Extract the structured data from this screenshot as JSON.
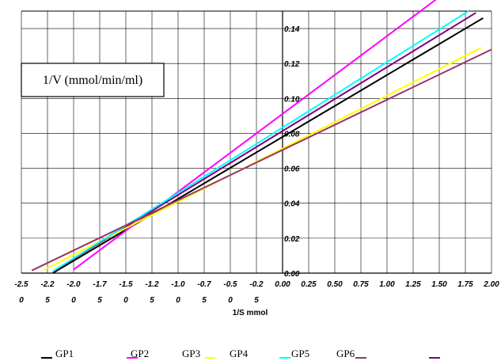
{
  "chart_data": {
    "type": "line",
    "title": "",
    "xlabel": "1/S mmol",
    "ylabel": "1/V (mmol/min/ml)",
    "xlim": [
      -2.5,
      2.0
    ],
    "ylim": [
      0.0,
      0.15
    ],
    "grid": true,
    "legend_position": "bottom",
    "x_ticks": [
      {
        "value": -2.5,
        "line1": "-2.5",
        "line2": "0"
      },
      {
        "value": -2.25,
        "line1": "-2.2",
        "line2": "5"
      },
      {
        "value": -2.0,
        "line1": "-2.0",
        "line2": "0"
      },
      {
        "value": -1.75,
        "line1": "-1.7",
        "line2": "5"
      },
      {
        "value": -1.5,
        "line1": "-1.5",
        "line2": "0"
      },
      {
        "value": -1.25,
        "line1": "-1.2",
        "line2": "5"
      },
      {
        "value": -1.0,
        "line1": "-1.0",
        "line2": "0"
      },
      {
        "value": -0.75,
        "line1": "-0.7",
        "line2": "5"
      },
      {
        "value": -0.5,
        "line1": "-0.5",
        "line2": "0"
      },
      {
        "value": -0.25,
        "line1": "-0.2",
        "line2": "5"
      },
      {
        "value": 0.0,
        "line1": "0.00",
        "line2": ""
      },
      {
        "value": 0.25,
        "line1": "0.25",
        "line2": ""
      },
      {
        "value": 0.5,
        "line1": "0.50",
        "line2": ""
      },
      {
        "value": 0.75,
        "line1": "0.75",
        "line2": ""
      },
      {
        "value": 1.0,
        "line1": "1.00",
        "line2": ""
      },
      {
        "value": 1.25,
        "line1": "1.25",
        "line2": ""
      },
      {
        "value": 1.5,
        "line1": "1.50",
        "line2": ""
      },
      {
        "value": 1.75,
        "line1": "1.75",
        "line2": ""
      },
      {
        "value": 2.0,
        "line1": "2.00",
        "line2": ""
      }
    ],
    "y_ticks": [
      {
        "value": 0.0,
        "label": "0.00"
      },
      {
        "value": 0.02,
        "label": "0.02"
      },
      {
        "value": 0.04,
        "label": "0.04"
      },
      {
        "value": 0.06,
        "label": "0.06"
      },
      {
        "value": 0.08,
        "label": "0.08"
      },
      {
        "value": 0.1,
        "label": "0.10"
      },
      {
        "value": 0.12,
        "label": "0.12"
      },
      {
        "value": 0.14,
        "label": "0.14"
      }
    ],
    "series": [
      {
        "name": "GP1",
        "color": "#000000",
        "x": [
          -2.2,
          1.92
        ],
        "y": [
          0.0,
          0.146
        ]
      },
      {
        "name": "GP2",
        "color": "#ff00ff",
        "x": [
          -2.0,
          1.5
        ],
        "y": [
          0.002,
          0.158
        ]
      },
      {
        "name": "GP3",
        "color": "#800080",
        "x": [
          -2.17,
          1.85
        ],
        "y": [
          0.002,
          0.149
        ]
      },
      {
        "name": "GP4",
        "color": "#ffff00",
        "x": [
          -2.28,
          1.9
        ],
        "y": [
          0.002,
          0.129
        ]
      },
      {
        "name": "GP5",
        "color": "#00ffff",
        "x": [
          -2.2,
          1.78
        ],
        "y": [
          0.001,
          0.15
        ]
      },
      {
        "name": "GP6",
        "color": "#993366",
        "x": [
          -2.4,
          2.0
        ],
        "y": [
          0.0015,
          0.128
        ]
      }
    ],
    "legend": [
      {
        "label": "GP1",
        "swatch_color": "#000000",
        "swatch_before": true
      },
      {
        "label": "GP2",
        "swatch_color": "#ff00ff",
        "swatch_before": false
      },
      {
        "label": "GP3",
        "swatch_color": "",
        "swatch_before": false
      },
      {
        "label": "GP4",
        "swatch_color": "#ffff00",
        "swatch_before": true
      },
      {
        "label": "GP5",
        "swatch_color": "#00ffff",
        "swatch_before": false
      },
      {
        "label": "GP6",
        "swatch_color": "#993366",
        "swatch_before": false
      },
      {
        "label": "",
        "swatch_color": "#800080",
        "swatch_before": false
      }
    ]
  }
}
